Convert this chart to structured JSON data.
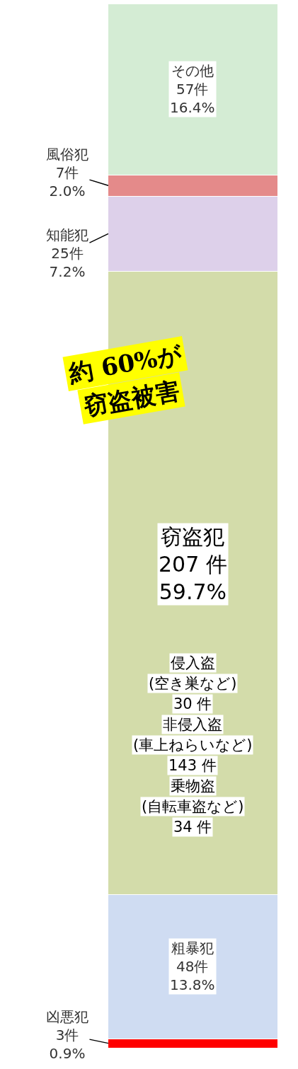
{
  "chart_data": {
    "type": "bar",
    "stacked": true,
    "categories": [
      null
    ],
    "series": [
      {
        "name": "凶悪犯",
        "color": "#ff0000",
        "values": [
          3
        ],
        "value_labels": [
          "3件\n0.9%"
        ]
      },
      {
        "name": "粗暴犯",
        "color": "#cfdcf2",
        "values": [
          48
        ],
        "value_labels": [
          "48件\n13.8%"
        ]
      },
      {
        "name": "窃盗犯",
        "color": "#d3dcaa",
        "values": [
          207
        ],
        "value_labels": [
          "207 件\n59.7%"
        ]
      },
      {
        "name": "知能犯",
        "color": "#ddd0ea",
        "values": [
          25
        ],
        "value_labels": [
          "25件\n7.2%"
        ]
      },
      {
        "name": "風俗犯",
        "color": "#e48a8a",
        "values": [
          7
        ],
        "value_labels": [
          "7件\n2.0%"
        ]
      },
      {
        "name": "その他",
        "color": "#d4ecd4",
        "values": [
          57
        ],
        "value_labels": [
          "57件\n16.4%"
        ]
      }
    ],
    "annotations": [
      "約 60%が",
      "窃盗被害",
      "侵入盗",
      "(空き巣など)",
      "30 件",
      "非侵入盗",
      "(車上ねらいなど)",
      "143 件",
      "乗物盗",
      "(自転車盗など)",
      "34 件"
    ]
  }
}
